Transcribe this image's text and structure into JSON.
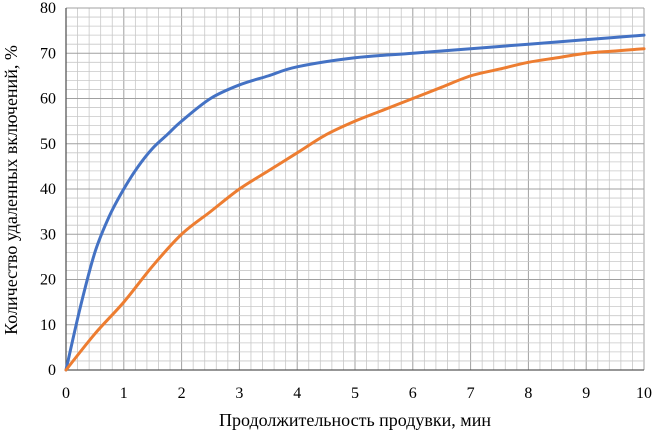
{
  "chart_data": {
    "type": "line",
    "xlabel": "Продолжительность продувки, мин",
    "ylabel": "Количество удаленных включений, %",
    "xlim": [
      0,
      10
    ],
    "ylim": [
      0,
      80
    ],
    "xticks": [
      "0",
      "1",
      "2",
      "3",
      "4",
      "5",
      "6",
      "7",
      "8",
      "9",
      "10"
    ],
    "yticks": [
      "0",
      "10",
      "20",
      "30",
      "40",
      "50",
      "60",
      "70",
      "80"
    ],
    "grid": true,
    "x_minor_step": 0.2,
    "y_minor_step": 2,
    "series": [
      {
        "color": "#4472c4",
        "x": [
          0,
          0.25,
          0.5,
          0.75,
          1.0,
          1.25,
          1.5,
          1.75,
          2.0,
          2.5,
          3.0,
          3.5,
          4.0,
          5.0,
          6.0,
          7.0,
          8.0,
          9.0,
          10.0
        ],
        "y": [
          0,
          14,
          26,
          34,
          40,
          45,
          49,
          52,
          55,
          60,
          63,
          65,
          67,
          69,
          70,
          71,
          72,
          73,
          74
        ]
      },
      {
        "color": "#ed7d31",
        "x": [
          0,
          0.5,
          1.0,
          1.5,
          2.0,
          2.5,
          3.0,
          3.5,
          4.0,
          4.5,
          5.0,
          5.5,
          6.0,
          6.5,
          7.0,
          7.5,
          8.0,
          8.5,
          9.0,
          9.5,
          10.0
        ],
        "y": [
          0,
          8,
          15,
          23,
          30,
          35,
          40,
          44,
          48,
          52,
          55,
          57.5,
          60,
          62.5,
          65,
          66.5,
          68,
          69,
          70,
          70.5,
          71
        ]
      }
    ]
  }
}
